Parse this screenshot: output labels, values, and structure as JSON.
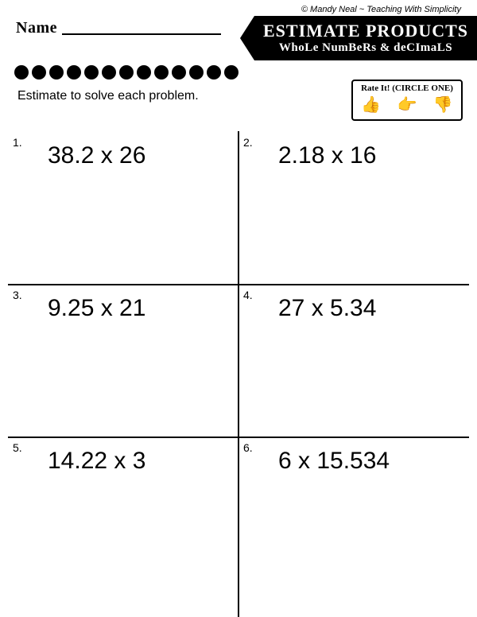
{
  "copyright": "© Mandy Neal ~ Teaching With Simplicity",
  "name_label": "Name",
  "title_main": "ESTIMATE PRODUCTS",
  "title_sub": "WhoLe NumBeRs & deCImaLS",
  "dot_count": 13,
  "instructions": "Estimate to solve each problem.",
  "rate_label": "Rate It! (CIRCLE ONE)",
  "rate_icons": [
    "👍",
    "👉",
    "👎"
  ],
  "problems": [
    {
      "num": "1.",
      "text": "38.2 x 26"
    },
    {
      "num": "2.",
      "text": "2.18 x 16"
    },
    {
      "num": "3.",
      "text": "9.25 x 21"
    },
    {
      "num": "4.",
      "text": "27 x 5.34"
    },
    {
      "num": "5.",
      "text": "14.22 x 3"
    },
    {
      "num": "6.",
      "text": "6 x 15.534"
    }
  ],
  "colors": {
    "bg": "#ffffff",
    "fg": "#000000"
  }
}
